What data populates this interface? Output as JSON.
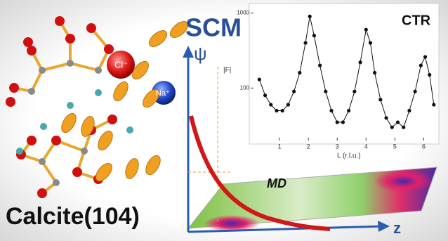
{
  "labels": {
    "scm": "SCM",
    "psi": "ψ",
    "md": "MD",
    "calcite": "Calcite(104)",
    "cl": "Cl⁻",
    "na": "Na⁺",
    "z": "z"
  },
  "chart_data": {
    "type": "scatter",
    "title": "CTR",
    "x_label": "L (r.l.u.)",
    "y_label": "|F|",
    "x": [
      0.3,
      0.5,
      0.7,
      0.9,
      1.1,
      1.3,
      1.5,
      1.7,
      1.9,
      2.05,
      2.2,
      2.4,
      2.6,
      2.8,
      3.0,
      3.2,
      3.4,
      3.6,
      3.8,
      4.0,
      4.15,
      4.3,
      4.5,
      4.7,
      4.9,
      5.1,
      5.3,
      5.5,
      5.7,
      5.9,
      6.05,
      6.2,
      6.35
    ],
    "series": [
      {
        "color": "#111111",
        "values": [
          130,
          80,
          60,
          50,
          50,
          60,
          90,
          160,
          400,
          900,
          500,
          200,
          90,
          50,
          35,
          35,
          50,
          90,
          220,
          600,
          400,
          160,
          70,
          40,
          30,
          35,
          30,
          50,
          90,
          200,
          260,
          150,
          60
        ]
      }
    ],
    "xlim": [
      0,
      6.5
    ],
    "ylim": [
      20,
      1200
    ],
    "log_y": true,
    "xticks": [
      1,
      2,
      3,
      4,
      5,
      6
    ],
    "yticks": [
      100,
      1000
    ]
  }
}
